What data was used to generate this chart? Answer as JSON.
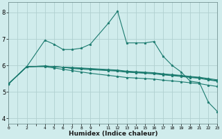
{
  "background_color": "#d0ecec",
  "grid_color": "#b0d0d0",
  "line_color": "#1a7a6e",
  "marker": "*",
  "xlabel": "Humidex (Indice chaleur)",
  "xlim": [
    0,
    23
  ],
  "ylim": [
    3.8,
    8.4
  ],
  "xticks": [
    0,
    1,
    2,
    3,
    4,
    5,
    6,
    7,
    8,
    9,
    10,
    11,
    12,
    13,
    14,
    15,
    16,
    17,
    18,
    19,
    20,
    21,
    22,
    23
  ],
  "xtick_labels": [
    "0",
    "",
    "2",
    "",
    "4",
    "5",
    "6",
    "7",
    "8",
    "9",
    "",
    "11",
    "12",
    "13",
    "14",
    "15",
    "16",
    "17",
    "18",
    "19",
    "20",
    "21",
    "22",
    "23"
  ],
  "yticks": [
    4,
    5,
    6,
    7,
    8
  ],
  "lines": [
    {
      "x": [
        0,
        2,
        4,
        5,
        6,
        7,
        8,
        9,
        11,
        12,
        13,
        14,
        15,
        16,
        17,
        18,
        19,
        20,
        21,
        22,
        23
      ],
      "y": [
        5.3,
        5.95,
        6.95,
        6.8,
        6.6,
        6.6,
        6.65,
        6.8,
        7.6,
        8.05,
        6.85,
        6.85,
        6.85,
        6.9,
        6.35,
        6.0,
        5.75,
        5.4,
        5.35,
        4.6,
        4.25
      ]
    },
    {
      "x": [
        0,
        2,
        4,
        5,
        6,
        7,
        8,
        9,
        11,
        12,
        13,
        14,
        15,
        16,
        17,
        18,
        19,
        20,
        21,
        22,
        23
      ],
      "y": [
        5.3,
        5.95,
        5.97,
        5.95,
        5.93,
        5.92,
        5.9,
        5.88,
        5.84,
        5.82,
        5.78,
        5.76,
        5.74,
        5.72,
        5.68,
        5.65,
        5.62,
        5.58,
        5.55,
        5.5,
        5.45
      ]
    },
    {
      "x": [
        0,
        2,
        4,
        5,
        6,
        7,
        8,
        9,
        11,
        12,
        13,
        14,
        15,
        16,
        17,
        18,
        19,
        20,
        21,
        22,
        23
      ],
      "y": [
        5.3,
        5.95,
        5.97,
        5.95,
        5.93,
        5.9,
        5.88,
        5.86,
        5.82,
        5.8,
        5.76,
        5.74,
        5.72,
        5.7,
        5.66,
        5.63,
        5.6,
        5.56,
        5.53,
        5.47,
        5.42
      ]
    },
    {
      "x": [
        0,
        2,
        4,
        5,
        6,
        7,
        8,
        9,
        11,
        12,
        13,
        14,
        15,
        16,
        17,
        18,
        19,
        20,
        21,
        22,
        23
      ],
      "y": [
        5.3,
        5.95,
        5.97,
        5.95,
        5.93,
        5.88,
        5.86,
        5.84,
        5.8,
        5.78,
        5.74,
        5.72,
        5.7,
        5.68,
        5.64,
        5.61,
        5.58,
        5.54,
        5.51,
        5.45,
        5.4
      ]
    },
    {
      "x": [
        0,
        2,
        4,
        5,
        6,
        7,
        8,
        9,
        11,
        12,
        13,
        14,
        15,
        16,
        17,
        18,
        19,
        20,
        21,
        22,
        23
      ],
      "y": [
        5.3,
        5.95,
        5.95,
        5.9,
        5.85,
        5.8,
        5.75,
        5.7,
        5.62,
        5.58,
        5.54,
        5.52,
        5.5,
        5.48,
        5.44,
        5.41,
        5.38,
        5.34,
        5.31,
        5.25,
        5.2
      ]
    }
  ]
}
